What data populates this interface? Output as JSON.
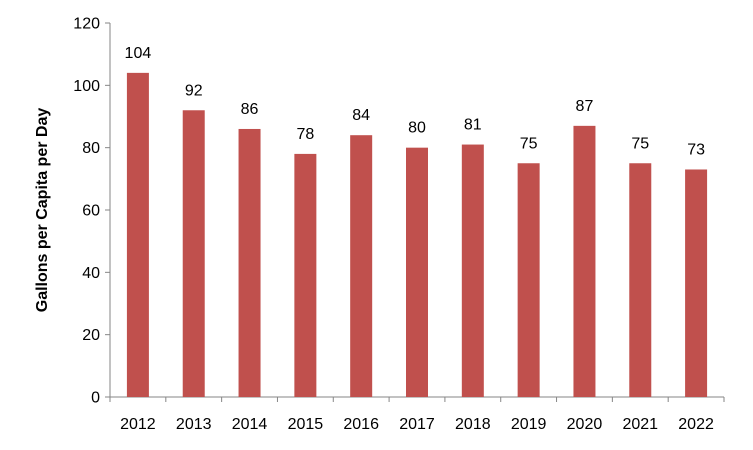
{
  "chart_data": {
    "type": "bar",
    "title": "",
    "xlabel": "",
    "ylabel": "Gallons per Capita per Day",
    "categories": [
      "2012",
      "2013",
      "2014",
      "2015",
      "2016",
      "2017",
      "2018",
      "2019",
      "2020",
      "2021",
      "2022"
    ],
    "values": [
      104,
      92,
      86,
      78,
      84,
      80,
      81,
      75,
      87,
      75,
      73
    ],
    "data_labels": [
      "104",
      "92",
      "86",
      "78",
      "84",
      "80",
      "81",
      "75",
      "87",
      "75",
      "73"
    ],
    "ylim": [
      0,
      120
    ],
    "yticks": [
      "0",
      "20",
      "40",
      "60",
      "80",
      "100",
      "120"
    ],
    "grid": false,
    "legend": "none",
    "colors": {
      "bar": "#C0504D",
      "axis": "#868686"
    }
  }
}
